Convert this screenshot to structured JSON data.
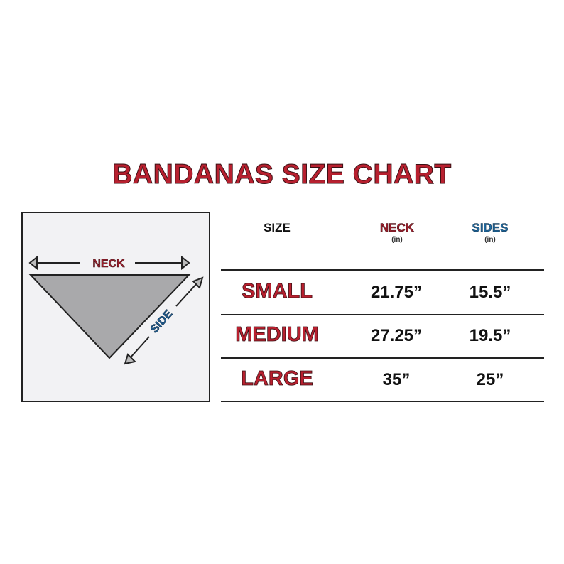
{
  "title": "BANDANAS SIZE CHART",
  "diagram": {
    "neck_label": "NECK",
    "side_label": "SIDE",
    "neck_color": "#9c1f2c",
    "side_color": "#1f5a8c",
    "fill": "#a9a9ab",
    "background": "#f2f2f4"
  },
  "table": {
    "headers": {
      "size": "SIZE",
      "neck": "NECK",
      "neck_unit": "(in)",
      "sides": "SIDES",
      "sides_unit": "(in)"
    },
    "rows": [
      {
        "size": "SMALL",
        "neck": "21.75”",
        "sides": "15.5”"
      },
      {
        "size": "MEDIUM",
        "neck": "27.25”",
        "sides": "19.5”"
      },
      {
        "size": "LARGE",
        "neck": "35”",
        "sides": "25”"
      }
    ]
  }
}
